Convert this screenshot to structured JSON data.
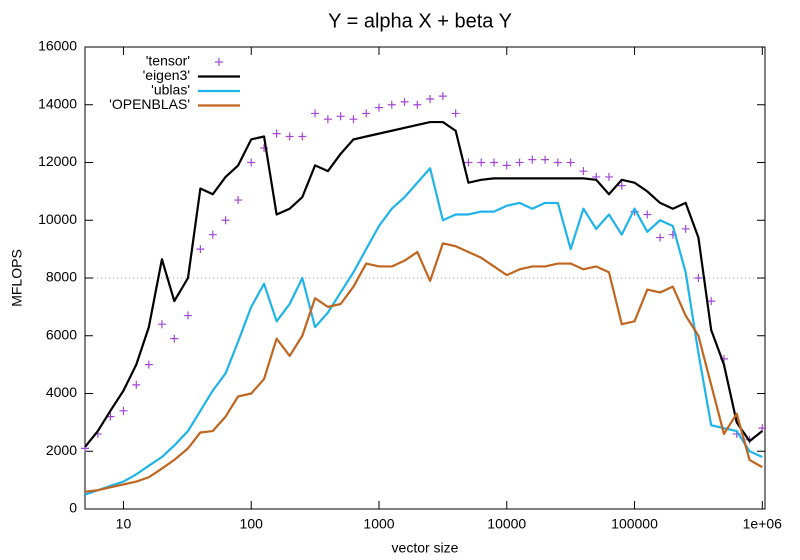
{
  "chart_data": {
    "type": "line",
    "title": "Y = alpha X + beta Y",
    "x_label": "vector size",
    "y_label": "MFLOPS",
    "x_scale": "log",
    "xlim": [
      5,
      1050000
    ],
    "ylim": [
      0,
      16000
    ],
    "xticks": [
      10,
      100,
      1000,
      10000,
      100000,
      {
        "value": 1000000,
        "label": "1e+06"
      }
    ],
    "yticks": [
      0,
      2000,
      4000,
      6000,
      8000,
      10000,
      12000,
      14000,
      16000
    ],
    "hline": 8000,
    "legend": "top-left",
    "x": [
      5,
      6.3,
      7.9,
      10,
      12.6,
      15.8,
      20,
      25,
      32,
      40,
      50,
      63,
      79,
      100,
      126,
      158,
      200,
      251,
      316,
      398,
      501,
      631,
      794,
      1000,
      1259,
      1585,
      1995,
      2512,
      3162,
      3981,
      5012,
      6310,
      7943,
      10000,
      12589,
      15849,
      19953,
      25119,
      31623,
      39811,
      50119,
      63096,
      79433,
      100000,
      125893,
      158489,
      199526,
      251189,
      316228,
      398107,
      501187,
      630957,
      794328,
      1000000
    ],
    "series": [
      {
        "name": "'tensor'",
        "color": "#a347d6",
        "style": "points",
        "values": [
          2100,
          2600,
          3200,
          3400,
          4300,
          5000,
          6400,
          5900,
          6700,
          9000,
          9500,
          10000,
          10700,
          12000,
          12500,
          13000,
          12900,
          12900,
          13700,
          13500,
          13600,
          13500,
          13700,
          13900,
          14000,
          14100,
          14000,
          14200,
          14300,
          13700,
          12000,
          12000,
          12000,
          11900,
          12000,
          12100,
          12100,
          12000,
          12000,
          11700,
          11500,
          11500,
          11200,
          10300,
          10200,
          9400,
          9500,
          9700,
          8000,
          7200,
          5200,
          2600,
          2400,
          2800
        ]
      },
      {
        "name": "'eigen3'",
        "color": "#000000",
        "style": "lines",
        "values": [
          2150,
          2700,
          3400,
          4100,
          5000,
          6300,
          8650,
          7200,
          8000,
          11100,
          10900,
          11500,
          11900,
          12800,
          12900,
          10200,
          10400,
          10800,
          11900,
          11700,
          12300,
          12800,
          12900,
          13000,
          13100,
          13200,
          13300,
          13400,
          13400,
          13100,
          11300,
          11400,
          11450,
          11450,
          11450,
          11450,
          11450,
          11450,
          11450,
          11450,
          11400,
          10900,
          11400,
          11300,
          11000,
          10600,
          10400,
          10600,
          9400,
          6200,
          5000,
          3000,
          2350,
          2700
        ]
      },
      {
        "name": "'ublas'",
        "color": "#1eb4ea",
        "style": "lines",
        "values": [
          500,
          650,
          800,
          950,
          1200,
          1500,
          1800,
          2200,
          2700,
          3400,
          4100,
          4700,
          5800,
          7000,
          7800,
          6500,
          7100,
          8000,
          6300,
          6800,
          7500,
          8200,
          9000,
          9800,
          10400,
          10800,
          11300,
          11800,
          10000,
          10200,
          10200,
          10300,
          10300,
          10500,
          10600,
          10400,
          10600,
          10600,
          9000,
          10400,
          9700,
          10200,
          9500,
          10400,
          9600,
          10000,
          9800,
          8200,
          5400,
          2900,
          2800,
          2700,
          2000,
          1800
        ]
      },
      {
        "name": "'OPENBLAS'",
        "color": "#c0651f",
        "style": "lines",
        "values": [
          600,
          650,
          750,
          850,
          950,
          1100,
          1400,
          1700,
          2100,
          2650,
          2700,
          3200,
          3900,
          4000,
          4500,
          5900,
          5300,
          6000,
          7300,
          7000,
          7100,
          7700,
          8500,
          8400,
          8400,
          8600,
          8900,
          7900,
          9200,
          9100,
          8900,
          8700,
          8400,
          8100,
          8300,
          8400,
          8400,
          8500,
          8500,
          8300,
          8400,
          8200,
          6400,
          6500,
          7600,
          7500,
          7700,
          6700,
          6000,
          4300,
          2600,
          3300,
          1700,
          1450
        ]
      }
    ]
  }
}
